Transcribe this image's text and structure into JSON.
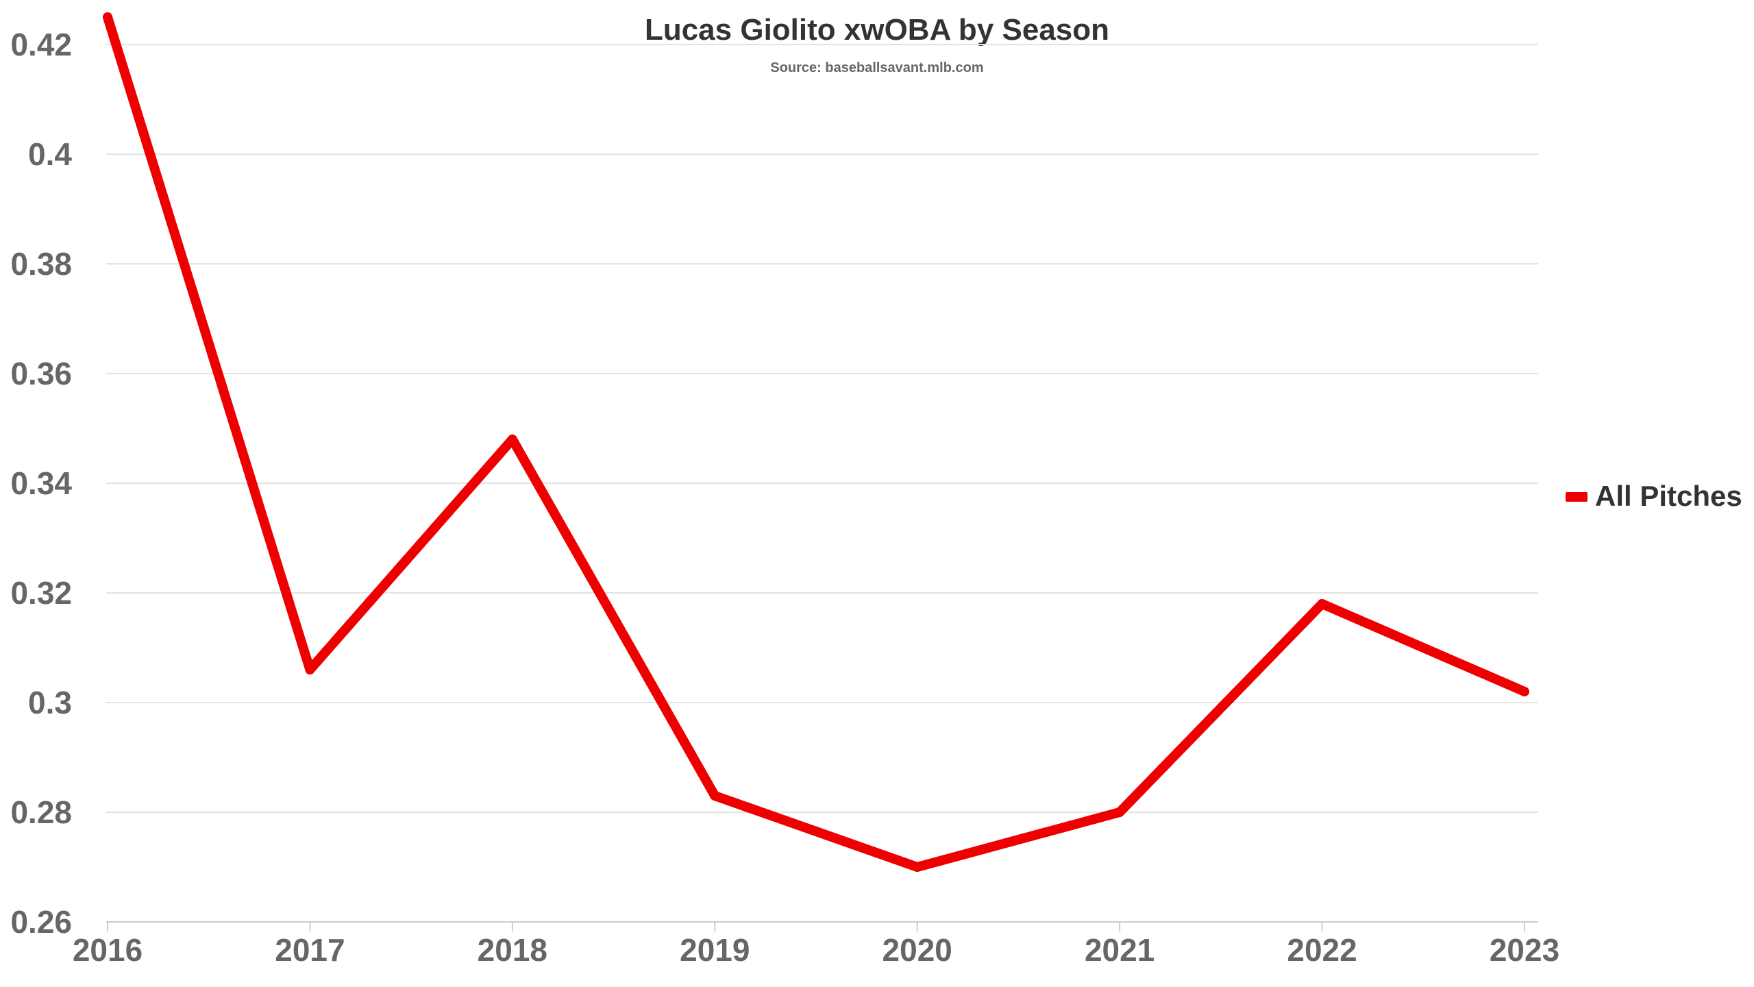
{
  "chart_data": {
    "type": "line",
    "title": "Lucas Giolito xwOBA by Season",
    "subtitle": "Source: baseballsavant.mlb.com",
    "categories": [
      "2016",
      "2017",
      "2018",
      "2019",
      "2020",
      "2021",
      "2022",
      "2023"
    ],
    "series": [
      {
        "name": "All Pitches",
        "color": "#ee0000",
        "values": [
          0.425,
          0.306,
          0.348,
          0.283,
          0.27,
          0.28,
          0.318,
          0.302
        ]
      }
    ],
    "ylim": [
      0.26,
      0.43
    ],
    "yticks": [
      "0.26",
      "0.28",
      "0.3",
      "0.32",
      "0.34",
      "0.36",
      "0.38",
      "0.4",
      "0.42"
    ],
    "grid": true,
    "legend": "right"
  }
}
